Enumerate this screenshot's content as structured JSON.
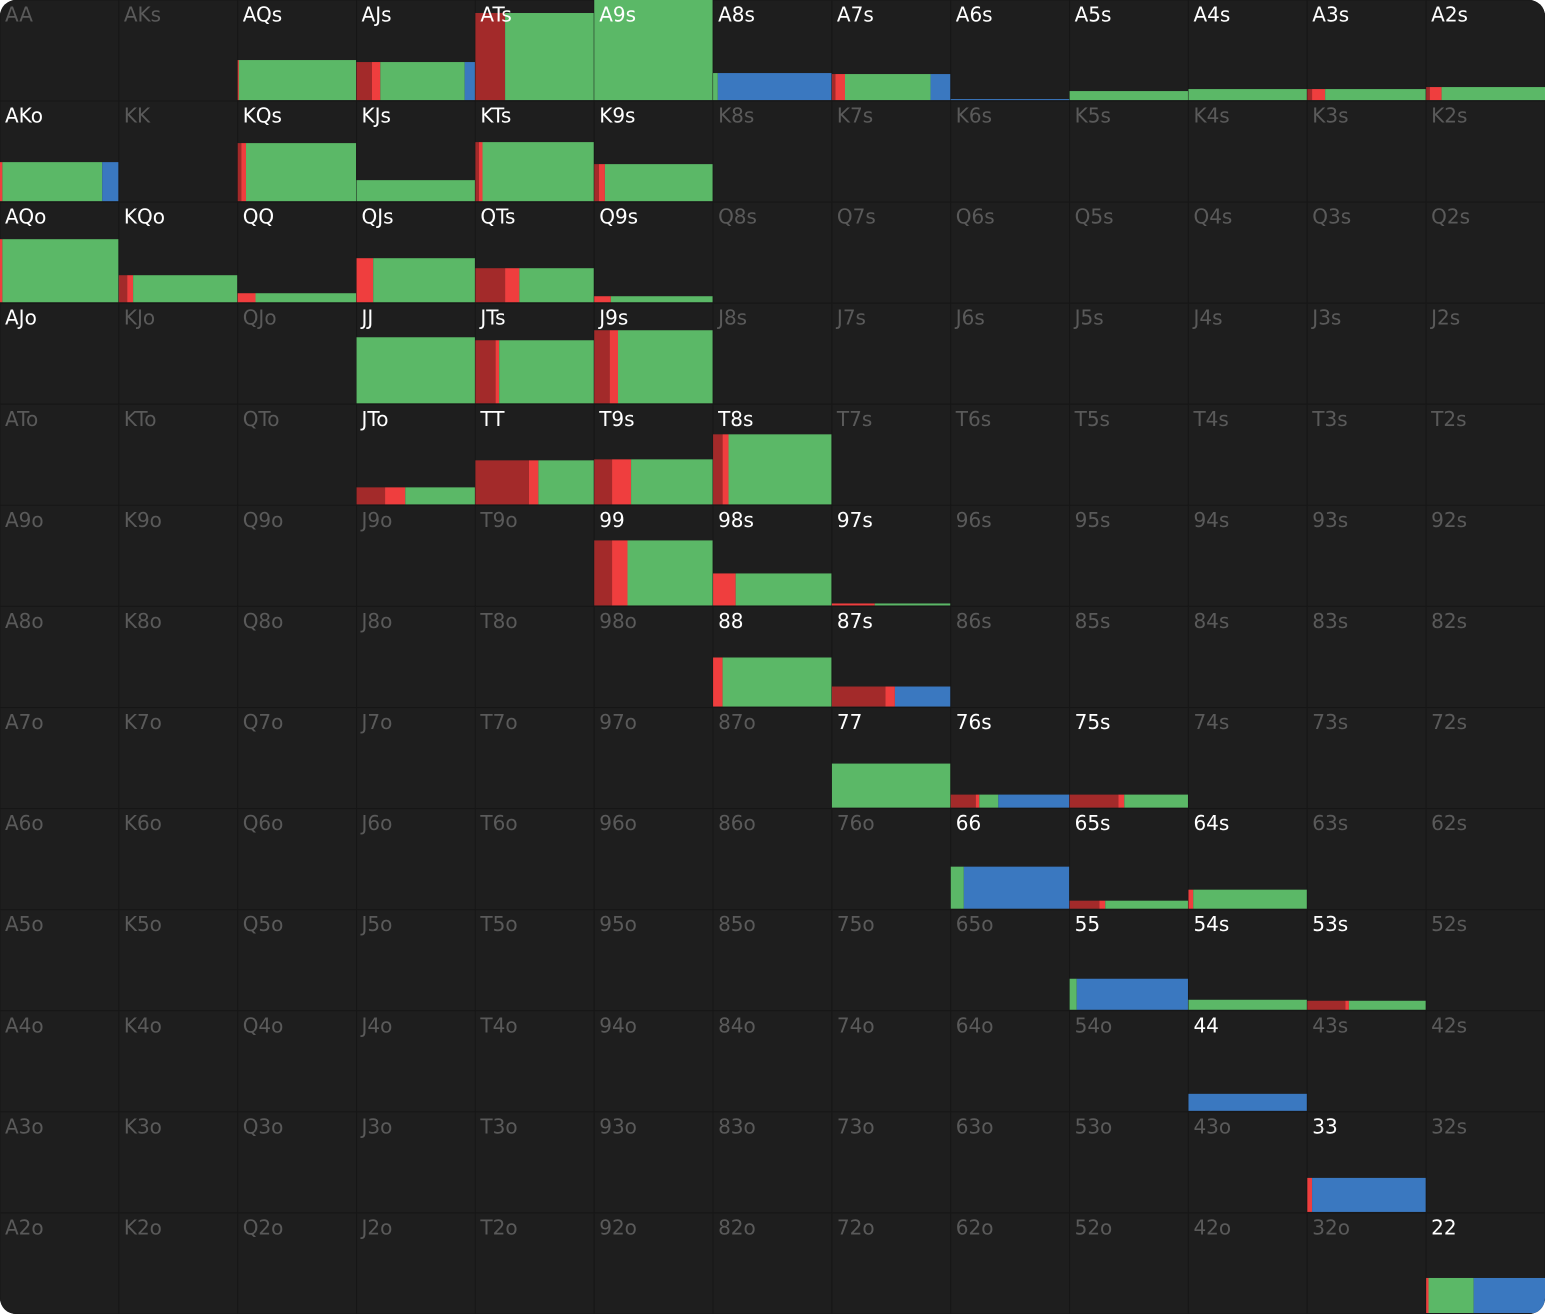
{
  "grid": {
    "colors": [
      "#a32a2a",
      "#ef3e3e",
      "#5bb867",
      "#3a78c0"
    ],
    "rows": [
      [
        {
          "label": "AA"
        },
        {
          "label": "AKs"
        },
        {
          "label": "AQs",
          "active": true,
          "frequency": 40,
          "mix": [
            0,
            1,
            99,
            0
          ]
        },
        {
          "label": "AJs",
          "active": true,
          "frequency": 38,
          "mix": [
            13,
            7,
            71,
            9
          ]
        },
        {
          "label": "ATs",
          "active": true,
          "frequency": 87,
          "mix": [
            25,
            0,
            75,
            0
          ]
        },
        {
          "label": "A9s",
          "active": true,
          "frequency": 100,
          "mix": [
            0,
            0,
            100,
            0
          ]
        },
        {
          "label": "A8s",
          "active": true,
          "frequency": 27,
          "mix": [
            0,
            0,
            4,
            96
          ]
        },
        {
          "label": "A7s",
          "active": true,
          "frequency": 26,
          "mix": [
            3,
            8,
            72,
            17
          ]
        },
        {
          "label": "A6s",
          "active": true,
          "frequency": 1,
          "mix": [
            0,
            0,
            0,
            100
          ]
        },
        {
          "label": "A5s",
          "active": true,
          "frequency": 9,
          "mix": [
            0,
            0,
            100,
            0
          ]
        },
        {
          "label": "A4s",
          "active": true,
          "frequency": 11,
          "mix": [
            0,
            0,
            100,
            0
          ]
        },
        {
          "label": "A3s",
          "active": true,
          "frequency": 11,
          "mix": [
            4,
            11,
            85,
            0
          ]
        },
        {
          "label": "A2s",
          "active": true,
          "frequency": 13,
          "mix": [
            3,
            10,
            87,
            0
          ]
        }
      ],
      [
        {
          "label": "AKo",
          "active": true,
          "frequency": 39,
          "mix": [
            0,
            2,
            84,
            14
          ]
        },
        {
          "label": "KK"
        },
        {
          "label": "KQs",
          "active": true,
          "frequency": 58,
          "mix": [
            3,
            4,
            93,
            0
          ]
        },
        {
          "label": "KJs",
          "active": true,
          "frequency": 21,
          "mix": [
            0,
            0,
            100,
            0
          ]
        },
        {
          "label": "KTs",
          "active": true,
          "frequency": 59,
          "mix": [
            3,
            3,
            94,
            0
          ]
        },
        {
          "label": "K9s",
          "active": true,
          "frequency": 37,
          "mix": [
            4,
            5,
            91,
            0
          ]
        },
        {
          "label": "K8s"
        },
        {
          "label": "K7s"
        },
        {
          "label": "K6s"
        },
        {
          "label": "K5s"
        },
        {
          "label": "K4s"
        },
        {
          "label": "K3s"
        },
        {
          "label": "K2s"
        }
      ],
      [
        {
          "label": "AQo",
          "active": true,
          "frequency": 63,
          "mix": [
            0,
            2,
            98,
            0
          ]
        },
        {
          "label": "KQo",
          "active": true,
          "frequency": 27,
          "mix": [
            7,
            5,
            88,
            0
          ]
        },
        {
          "label": "QQ",
          "active": true,
          "frequency": 9,
          "mix": [
            0,
            15,
            85,
            0
          ]
        },
        {
          "label": "QJs",
          "active": true,
          "frequency": 44,
          "mix": [
            0,
            14,
            86,
            0
          ]
        },
        {
          "label": "QTs",
          "active": true,
          "frequency": 34,
          "mix": [
            25,
            12,
            63,
            0
          ]
        },
        {
          "label": "Q9s",
          "active": true,
          "frequency": 6,
          "mix": [
            0,
            14,
            86,
            0
          ]
        },
        {
          "label": "Q8s"
        },
        {
          "label": "Q7s"
        },
        {
          "label": "Q6s"
        },
        {
          "label": "Q5s"
        },
        {
          "label": "Q4s"
        },
        {
          "label": "Q3s"
        },
        {
          "label": "Q2s"
        }
      ],
      [
        {
          "label": "AJo",
          "active": true
        },
        {
          "label": "KJo"
        },
        {
          "label": "QJo"
        },
        {
          "label": "JJ",
          "active": true,
          "frequency": 66,
          "mix": [
            0,
            0,
            100,
            0
          ]
        },
        {
          "label": "JTs",
          "active": true,
          "frequency": 63,
          "mix": [
            17,
            3,
            80,
            0
          ]
        },
        {
          "label": "J9s",
          "active": true,
          "frequency": 73,
          "mix": [
            13,
            7,
            80,
            0
          ]
        },
        {
          "label": "J8s"
        },
        {
          "label": "J7s"
        },
        {
          "label": "J6s"
        },
        {
          "label": "J5s"
        },
        {
          "label": "J4s"
        },
        {
          "label": "J3s"
        },
        {
          "label": "J2s"
        }
      ],
      [
        {
          "label": "ATo"
        },
        {
          "label": "KTo"
        },
        {
          "label": "QTo"
        },
        {
          "label": "JTo",
          "active": true,
          "frequency": 17,
          "mix": [
            24,
            17,
            59,
            0
          ]
        },
        {
          "label": "TT",
          "active": true,
          "frequency": 44,
          "mix": [
            45,
            8,
            47,
            0
          ]
        },
        {
          "label": "T9s",
          "active": true,
          "frequency": 45,
          "mix": [
            15,
            16,
            69,
            0
          ]
        },
        {
          "label": "T8s",
          "active": true,
          "frequency": 70,
          "mix": [
            8,
            5,
            87,
            0
          ]
        },
        {
          "label": "T7s"
        },
        {
          "label": "T6s"
        },
        {
          "label": "T5s"
        },
        {
          "label": "T4s"
        },
        {
          "label": "T3s"
        },
        {
          "label": "T2s"
        }
      ],
      [
        {
          "label": "A9o"
        },
        {
          "label": "K9o"
        },
        {
          "label": "Q9o"
        },
        {
          "label": "J9o"
        },
        {
          "label": "T9o"
        },
        {
          "label": "99",
          "active": true,
          "frequency": 65,
          "mix": [
            15,
            13,
            72,
            0
          ]
        },
        {
          "label": "98s",
          "active": true,
          "frequency": 32,
          "mix": [
            0,
            19,
            81,
            0
          ]
        },
        {
          "label": "97s",
          "active": true,
          "frequency": 2,
          "mix": [
            0,
            36,
            64,
            0
          ]
        },
        {
          "label": "96s"
        },
        {
          "label": "95s"
        },
        {
          "label": "94s"
        },
        {
          "label": "93s"
        },
        {
          "label": "92s"
        }
      ],
      [
        {
          "label": "A8o"
        },
        {
          "label": "K8o"
        },
        {
          "label": "Q8o"
        },
        {
          "label": "J8o"
        },
        {
          "label": "T8o"
        },
        {
          "label": "98o"
        },
        {
          "label": "88",
          "active": true,
          "frequency": 49,
          "mix": [
            0,
            8,
            92,
            0
          ]
        },
        {
          "label": "87s",
          "active": true,
          "frequency": 20,
          "mix": [
            45,
            8,
            0,
            47
          ]
        },
        {
          "label": "86s"
        },
        {
          "label": "85s"
        },
        {
          "label": "84s"
        },
        {
          "label": "83s"
        },
        {
          "label": "82s"
        }
      ],
      [
        {
          "label": "A7o"
        },
        {
          "label": "K7o"
        },
        {
          "label": "Q7o"
        },
        {
          "label": "J7o"
        },
        {
          "label": "T7o"
        },
        {
          "label": "97o"
        },
        {
          "label": "87o"
        },
        {
          "label": "77",
          "active": true,
          "frequency": 44,
          "mix": [
            0,
            0,
            100,
            0
          ]
        },
        {
          "label": "76s",
          "active": true,
          "frequency": 13,
          "mix": [
            21,
            3,
            16,
            60
          ]
        },
        {
          "label": "75s",
          "active": true,
          "frequency": 13,
          "mix": [
            41,
            5,
            54,
            0
          ]
        },
        {
          "label": "74s"
        },
        {
          "label": "73s"
        },
        {
          "label": "72s"
        }
      ],
      [
        {
          "label": "A6o"
        },
        {
          "label": "K6o"
        },
        {
          "label": "Q6o"
        },
        {
          "label": "J6o"
        },
        {
          "label": "T6o"
        },
        {
          "label": "96o"
        },
        {
          "label": "86o"
        },
        {
          "label": "76o"
        },
        {
          "label": "66",
          "active": true,
          "frequency": 42,
          "mix": [
            0,
            0,
            11,
            89
          ]
        },
        {
          "label": "65s",
          "active": true,
          "frequency": 8,
          "mix": [
            25,
            5,
            70,
            0
          ]
        },
        {
          "label": "64s",
          "active": true,
          "frequency": 19,
          "mix": [
            0,
            4,
            96,
            0
          ]
        },
        {
          "label": "63s"
        },
        {
          "label": "62s"
        }
      ],
      [
        {
          "label": "A5o"
        },
        {
          "label": "K5o"
        },
        {
          "label": "Q5o"
        },
        {
          "label": "J5o"
        },
        {
          "label": "T5o"
        },
        {
          "label": "95o"
        },
        {
          "label": "85o"
        },
        {
          "label": "75o"
        },
        {
          "label": "65o"
        },
        {
          "label": "55",
          "active": true,
          "frequency": 31,
          "mix": [
            0,
            0,
            6,
            94
          ]
        },
        {
          "label": "54s",
          "active": true,
          "frequency": 10,
          "mix": [
            0,
            0,
            100,
            0
          ]
        },
        {
          "label": "53s",
          "active": true,
          "frequency": 9,
          "mix": [
            32,
            3,
            65,
            0
          ]
        },
        {
          "label": "52s"
        }
      ],
      [
        {
          "label": "A4o"
        },
        {
          "label": "K4o"
        },
        {
          "label": "Q4o"
        },
        {
          "label": "J4o"
        },
        {
          "label": "T4o"
        },
        {
          "label": "94o"
        },
        {
          "label": "84o"
        },
        {
          "label": "74o"
        },
        {
          "label": "64o"
        },
        {
          "label": "54o"
        },
        {
          "label": "44",
          "active": true,
          "frequency": 17,
          "mix": [
            0,
            0,
            0,
            100
          ]
        },
        {
          "label": "43s"
        },
        {
          "label": "42s"
        }
      ],
      [
        {
          "label": "A3o"
        },
        {
          "label": "K3o"
        },
        {
          "label": "Q3o"
        },
        {
          "label": "J3o"
        },
        {
          "label": "T3o"
        },
        {
          "label": "93o"
        },
        {
          "label": "83o"
        },
        {
          "label": "73o"
        },
        {
          "label": "63o"
        },
        {
          "label": "53o"
        },
        {
          "label": "43o"
        },
        {
          "label": "33",
          "active": true,
          "frequency": 34,
          "mix": [
            0,
            4,
            0,
            96
          ]
        },
        {
          "label": "32s"
        }
      ],
      [
        {
          "label": "A2o"
        },
        {
          "label": "K2o"
        },
        {
          "label": "Q2o"
        },
        {
          "label": "J2o"
        },
        {
          "label": "T2o"
        },
        {
          "label": "92o"
        },
        {
          "label": "82o"
        },
        {
          "label": "72o"
        },
        {
          "label": "62o"
        },
        {
          "label": "52o"
        },
        {
          "label": "42o"
        },
        {
          "label": "32o"
        },
        {
          "label": "22",
          "active": true,
          "frequency": 35,
          "mix": [
            0,
            2,
            38,
            60
          ]
        }
      ]
    ]
  }
}
